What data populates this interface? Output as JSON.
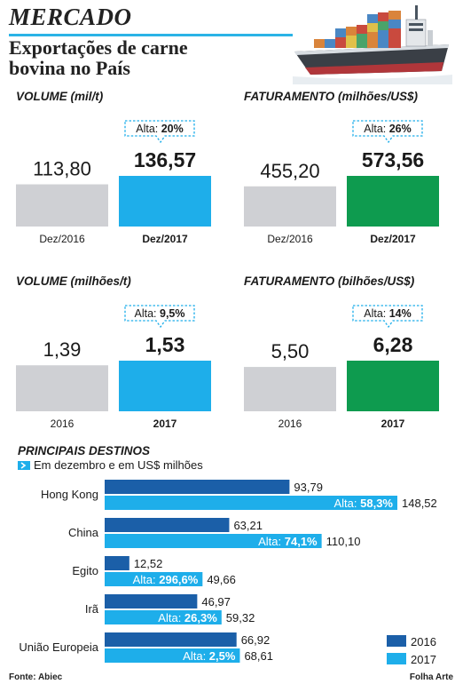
{
  "header": {
    "kicker": "MERCADO",
    "headline_line1": "Exportações de carne",
    "headline_line2": "bovina no País"
  },
  "chart_data": [
    {
      "type": "bar",
      "title": "VOLUME (mil/t)",
      "categories": [
        "Dez/2016",
        "Dez/2017"
      ],
      "values": [
        113.8,
        136.57
      ],
      "value_labels": [
        "113,80",
        "136,57"
      ],
      "badge": {
        "prefix": "Alta:",
        "value": "20%"
      },
      "colors": [
        "#cfd0d4",
        "#1eaeea"
      ]
    },
    {
      "type": "bar",
      "title": "FATURAMENTO (milhões/US$)",
      "categories": [
        "Dez/2016",
        "Dez/2017"
      ],
      "values": [
        455.2,
        573.56
      ],
      "value_labels": [
        "455,20",
        "573,56"
      ],
      "badge": {
        "prefix": "Alta:",
        "value": "26%"
      },
      "colors": [
        "#cfd0d4",
        "#0e9b4f"
      ]
    },
    {
      "type": "bar",
      "title": "VOLUME (milhões/t)",
      "categories": [
        "2016",
        "2017"
      ],
      "values": [
        1.39,
        1.53
      ],
      "value_labels": [
        "1,39",
        "1,53"
      ],
      "badge": {
        "prefix": "Alta:",
        "value": "9,5%"
      },
      "colors": [
        "#cfd0d4",
        "#1eaeea"
      ]
    },
    {
      "type": "bar",
      "title": "FATURAMENTO (bilhões/US$)",
      "categories": [
        "2016",
        "2017"
      ],
      "values": [
        5.5,
        6.28
      ],
      "value_labels": [
        "5,50",
        "6,28"
      ],
      "badge": {
        "prefix": "Alta:",
        "value": "14%"
      },
      "colors": [
        "#cfd0d4",
        "#0e9b4f"
      ]
    },
    {
      "type": "bar",
      "orientation": "horizontal",
      "title": "PRINCIPAIS DESTINOS",
      "subtitle": "Em dezembro e em US$ milhões",
      "categories": [
        "Hong Kong",
        "China",
        "Egito",
        "Irã",
        "União Europeia"
      ],
      "series": [
        {
          "name": "2016",
          "color": "#1b5fa8",
          "values": [
            93.79,
            63.21,
            12.52,
            46.97,
            66.92
          ],
          "labels": [
            "93,79",
            "63,21",
            "12,52",
            "46,97",
            "66,92"
          ]
        },
        {
          "name": "2017",
          "color": "#1eaeea",
          "values": [
            148.52,
            110.1,
            49.66,
            59.32,
            68.61
          ],
          "labels": [
            "148,52",
            "110,10",
            "49,66",
            "59,32",
            "68,61"
          ]
        }
      ],
      "growth": [
        {
          "prefix": "Alta:",
          "value": "58,3%"
        },
        {
          "prefix": "Alta:",
          "value": "74,1%"
        },
        {
          "prefix": "Alta:",
          "value": "296,6%"
        },
        {
          "prefix": "Alta:",
          "value": "26,3%"
        },
        {
          "prefix": "Alta:",
          "value": "2,5%"
        }
      ]
    }
  ],
  "footer": {
    "source": "Fonte: Abiec",
    "credit": "Folha Arte"
  }
}
